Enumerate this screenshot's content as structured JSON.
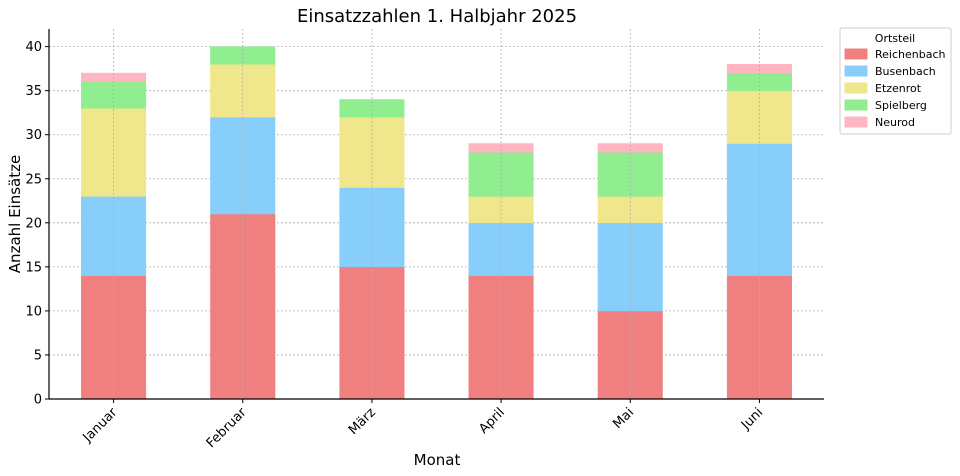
{
  "chart_data": {
    "type": "bar",
    "stacked": true,
    "title": "Einsatzzahlen 1. Halbjahr 2025",
    "xlabel": "Monat",
    "ylabel": "Anzahl Einsätze",
    "categories": [
      "Januar",
      "Februar",
      "März",
      "April",
      "Mai",
      "Juni"
    ],
    "ylim": [
      0,
      42
    ],
    "yticks": [
      0,
      5,
      10,
      15,
      20,
      25,
      30,
      35,
      40
    ],
    "grid": true,
    "legend_title": "Ortsteil",
    "legend_position": "outside-top-right",
    "series": [
      {
        "name": "Reichenbach",
        "color": "#f08080",
        "values": [
          14,
          21,
          15,
          14,
          10,
          14
        ]
      },
      {
        "name": "Busenbach",
        "color": "#87cefa",
        "values": [
          9,
          11,
          9,
          6,
          10,
          15
        ]
      },
      {
        "name": "Etzenrot",
        "color": "#f0e68c",
        "values": [
          10,
          6,
          8,
          3,
          3,
          6
        ]
      },
      {
        "name": "Spielberg",
        "color": "#90ee90",
        "values": [
          3,
          2,
          2,
          5,
          5,
          2
        ]
      },
      {
        "name": "Neurod",
        "color": "#ffb6c1",
        "values": [
          1,
          0,
          0,
          1,
          1,
          1
        ]
      }
    ]
  }
}
